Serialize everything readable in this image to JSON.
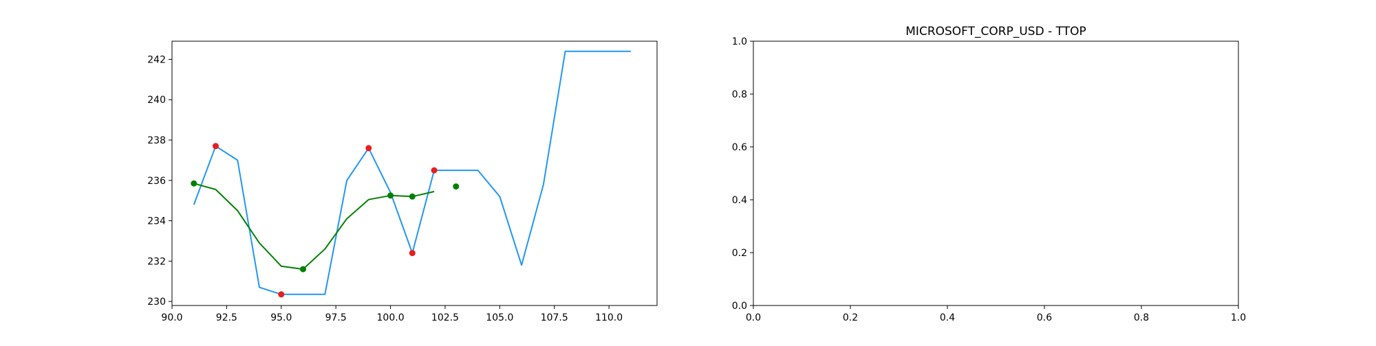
{
  "chart_data": [
    {
      "type": "line",
      "title": "",
      "xlabel": "",
      "ylabel": "",
      "xlim": [
        90,
        112.2
      ],
      "ylim": [
        229.8,
        242.9
      ],
      "xticks": [
        90.0,
        92.5,
        95.0,
        97.5,
        100.0,
        102.5,
        105.0,
        107.5,
        110.0
      ],
      "xtick_labels": [
        "90.0",
        "92.5",
        "95.0",
        "97.5",
        "100.0",
        "102.5",
        "105.0",
        "107.5",
        "110.0"
      ],
      "yticks": [
        230,
        232,
        234,
        236,
        238,
        240,
        242
      ],
      "ytick_labels": [
        "230",
        "232",
        "234",
        "236",
        "238",
        "240",
        "242"
      ],
      "grid": false,
      "series": [
        {
          "kind": "line",
          "color": "#2196f3",
          "x": [
            91,
            92,
            93,
            94,
            95,
            96,
            97,
            98,
            99,
            100,
            101,
            102,
            103,
            104,
            105,
            106,
            107,
            108,
            109,
            110,
            111
          ],
          "y": [
            234.8,
            237.7,
            237.0,
            230.7,
            230.35,
            230.35,
            230.35,
            236.0,
            237.6,
            235.4,
            232.4,
            236.5,
            236.5,
            236.5,
            235.2,
            231.8,
            235.8,
            242.4,
            242.4,
            242.4,
            242.4
          ]
        },
        {
          "kind": "line",
          "color": "#008000",
          "x": [
            91,
            92,
            93,
            94,
            95,
            96,
            97,
            98,
            99,
            100,
            101,
            102
          ],
          "y": [
            235.85,
            235.55,
            234.5,
            232.9,
            231.75,
            231.6,
            232.6,
            234.1,
            235.05,
            235.25,
            235.2,
            235.45
          ]
        },
        {
          "kind": "scatter",
          "color": "#e81e1e",
          "x": [
            92,
            95,
            99,
            101,
            102
          ],
          "y": [
            237.7,
            230.35,
            237.6,
            232.4,
            236.5
          ]
        },
        {
          "kind": "scatter",
          "color": "#008000",
          "x": [
            91,
            96,
            100,
            101,
            103
          ],
          "y": [
            235.85,
            231.6,
            235.25,
            235.2,
            235.7
          ]
        }
      ]
    },
    {
      "type": "line",
      "title": "MICROSOFT_CORP_USD - TTOP",
      "xlabel": "",
      "ylabel": "",
      "xlim": [
        0,
        1
      ],
      "ylim": [
        0,
        1
      ],
      "xticks": [
        0.0,
        0.2,
        0.4,
        0.6,
        0.8,
        1.0
      ],
      "xtick_labels": [
        "0.0",
        "0.2",
        "0.4",
        "0.6",
        "0.8",
        "1.0"
      ],
      "yticks": [
        0.0,
        0.2,
        0.4,
        0.6,
        0.8,
        1.0
      ],
      "ytick_labels": [
        "0.0",
        "0.2",
        "0.4",
        "0.6",
        "0.8",
        "1.0"
      ],
      "grid": false,
      "series": []
    }
  ]
}
